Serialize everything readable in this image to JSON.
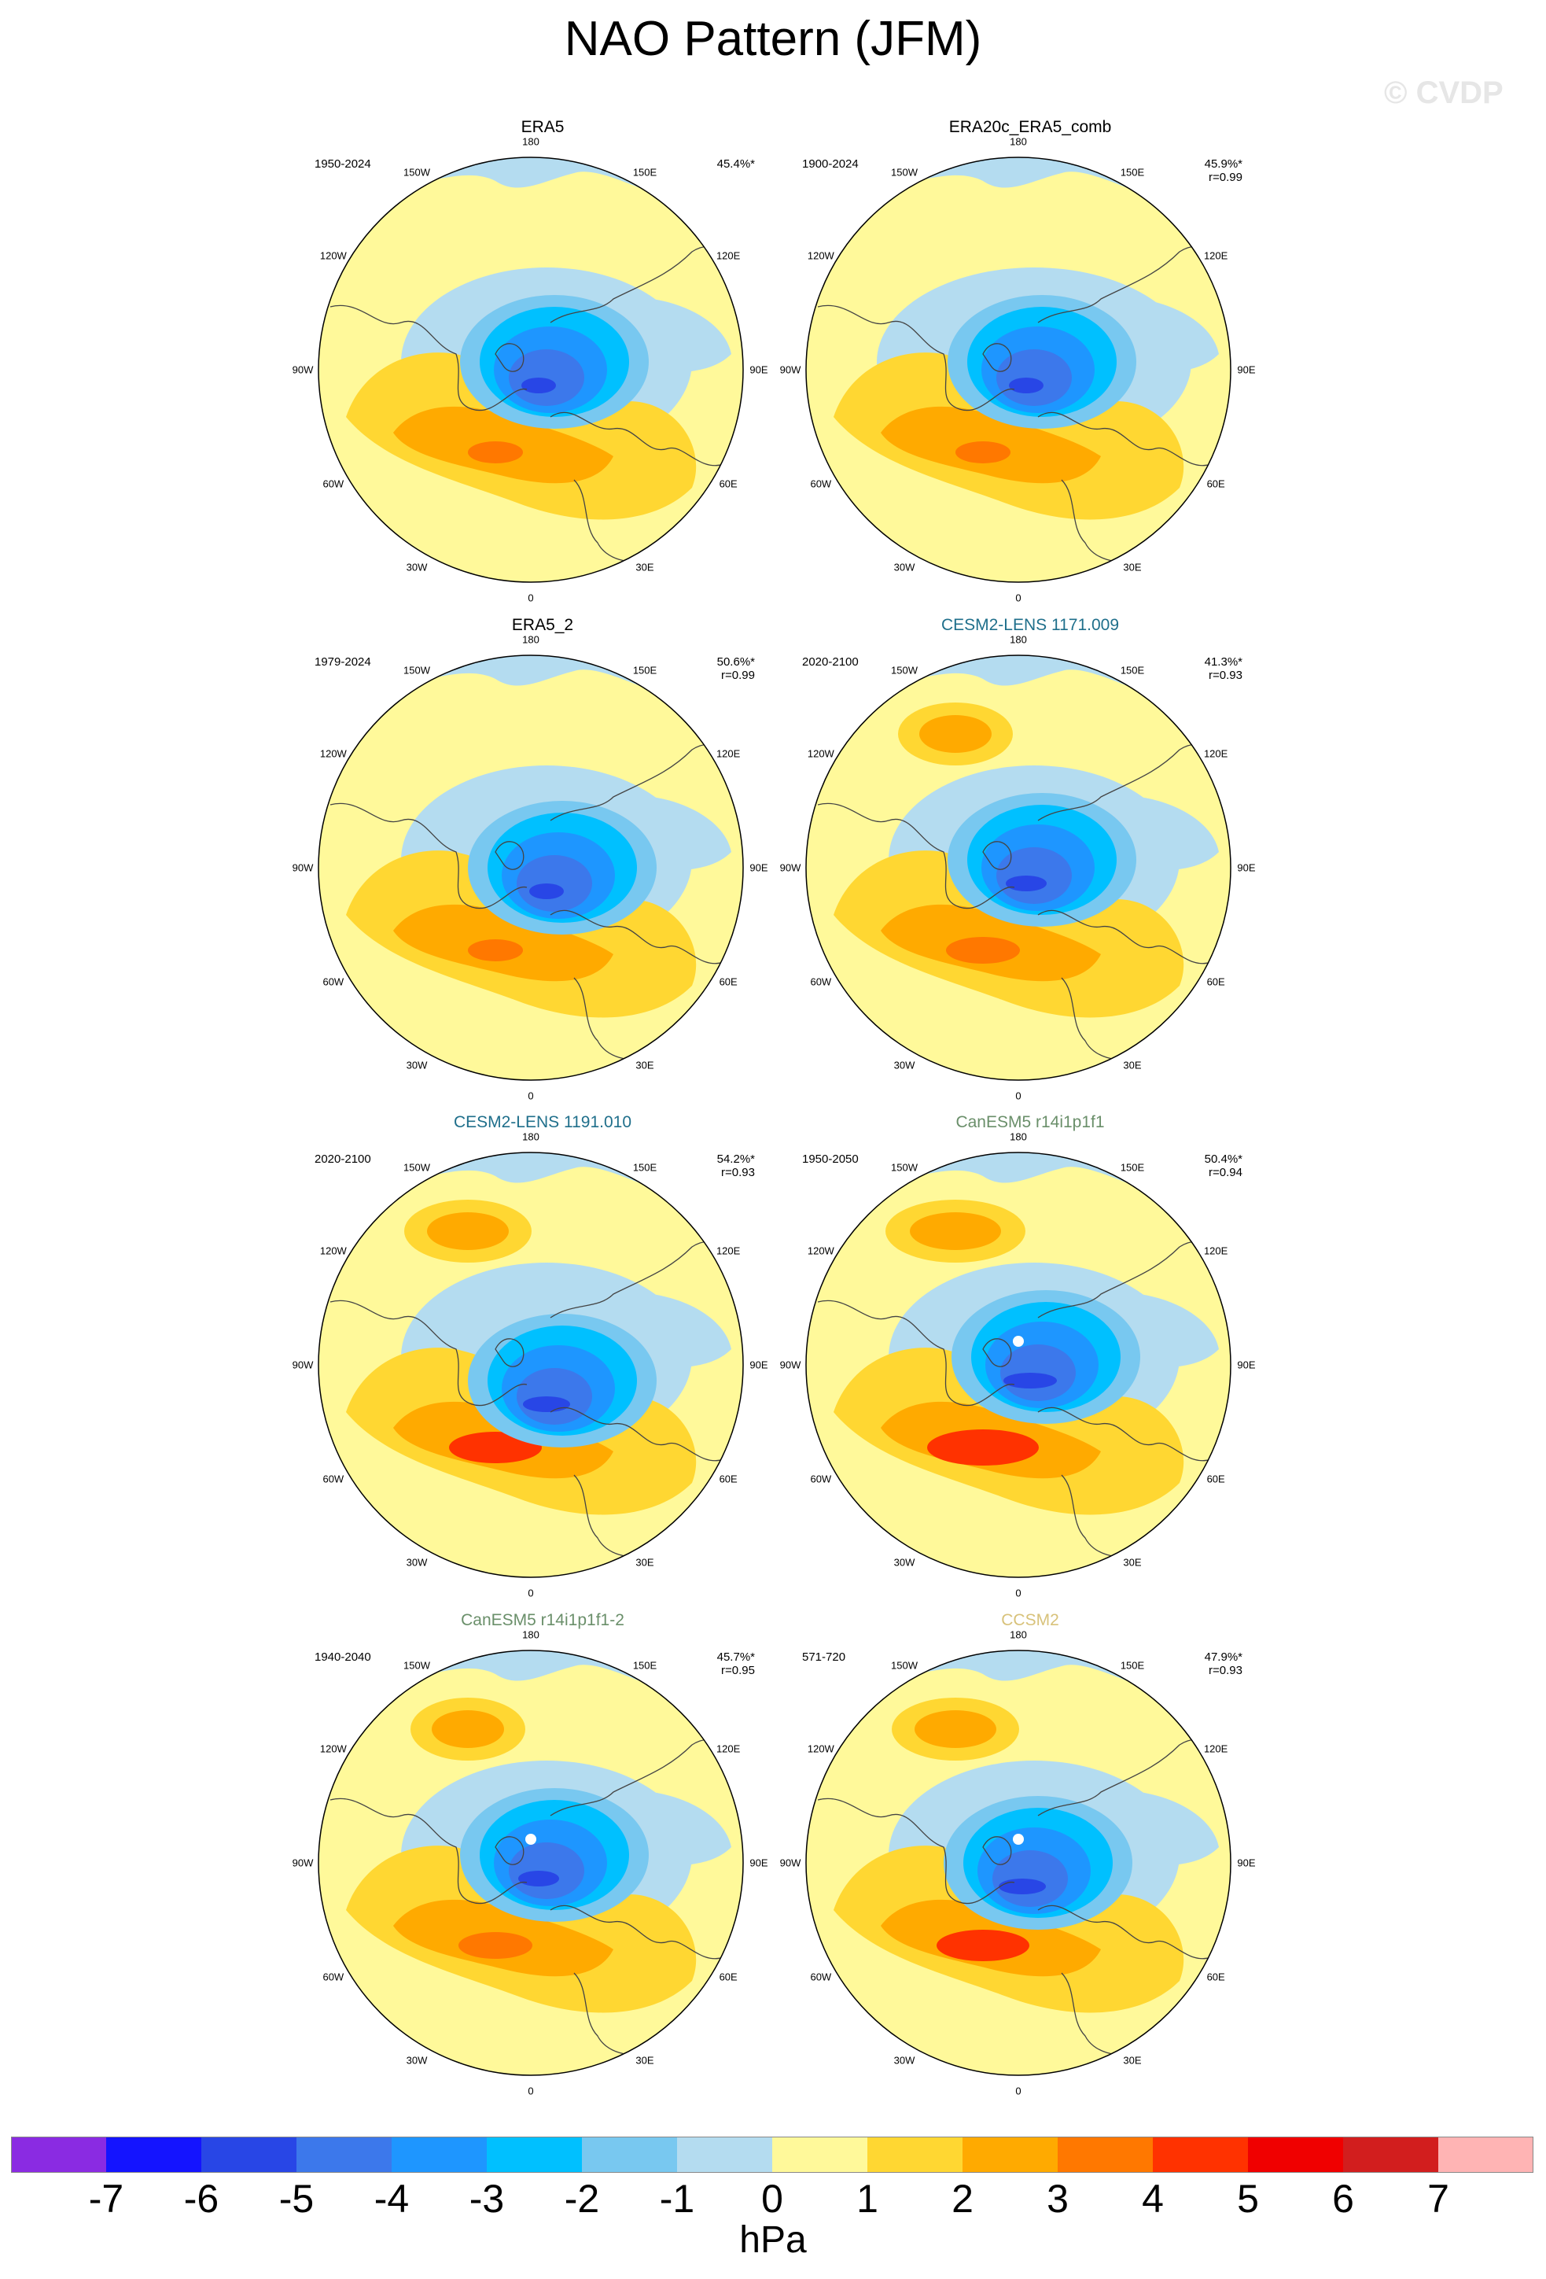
{
  "title": "NAO Pattern (JFM)",
  "watermark": "© CVDP",
  "lon_labels": [
    "180",
    "150E",
    "120E",
    "90E",
    "60E",
    "30E",
    "0",
    "30W",
    "60W",
    "90W",
    "120W",
    "150W"
  ],
  "panels": [
    {
      "name": "ERA5",
      "period": "1950-2024",
      "pct": "45.4%*",
      "r": "",
      "title_color": "black"
    },
    {
      "name": "ERA20c_ERA5_comb",
      "period": "1900-2024",
      "pct": "45.9%*",
      "r": "r=0.99",
      "title_color": "black"
    },
    {
      "name": "ERA5_2",
      "period": "1979-2024",
      "pct": "50.6%*",
      "r": "r=0.99",
      "title_color": "black"
    },
    {
      "name": "CESM2-LENS 1171.009",
      "period": "2020-2100",
      "pct": "41.3%*",
      "r": "r=0.93",
      "title_color": "teal"
    },
    {
      "name": "CESM2-LENS 1191.010",
      "period": "2020-2100",
      "pct": "54.2%*",
      "r": "r=0.93",
      "title_color": "teal"
    },
    {
      "name": "CanESM5 r14i1p1f1",
      "period": "1950-2050",
      "pct": "50.4%*",
      "r": "r=0.94",
      "title_color": "green"
    },
    {
      "name": "CanESM5 r14i1p1f1-2",
      "period": "1940-2040",
      "pct": "45.7%*",
      "r": "r=0.95",
      "title_color": "green"
    },
    {
      "name": "CCSM2",
      "period": "571-720",
      "pct": "47.9%*",
      "r": "r=0.93",
      "title_color": "gold"
    }
  ],
  "colorbar": {
    "units": "hPa",
    "colors": [
      "#8a2be2",
      "#1414ff",
      "#2846e6",
      "#3c78eb",
      "#1e96ff",
      "#00c0ff",
      "#78c8f0",
      "#b4dcf0",
      "#fff99a",
      "#ffd732",
      "#ffaa00",
      "#ff7800",
      "#ff3200",
      "#f00000",
      "#d21e1e",
      "#ffb4b4"
    ],
    "ticks": [
      "-7",
      "-6",
      "-5",
      "-4",
      "-3",
      "-2",
      "-1",
      "0",
      "1",
      "2",
      "3",
      "4",
      "5",
      "6",
      "7"
    ]
  }
}
